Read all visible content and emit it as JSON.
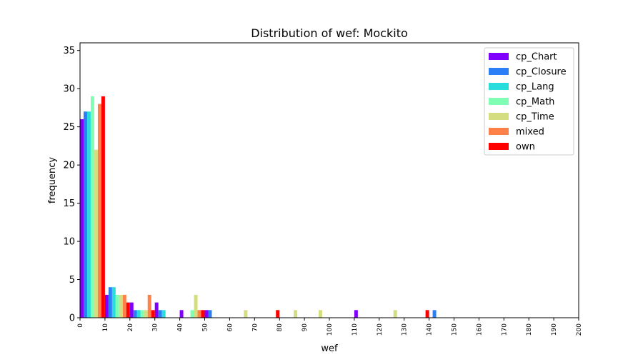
{
  "chart_data": {
    "type": "bar",
    "title": "Distribution of wef: Mockito",
    "xlabel": "wef",
    "ylabel": "frequency",
    "xlim": [
      0,
      200
    ],
    "ylim": [
      0,
      36
    ],
    "xticks": [
      0,
      10,
      20,
      30,
      40,
      50,
      60,
      70,
      80,
      90,
      100,
      110,
      120,
      130,
      140,
      150,
      160,
      170,
      180,
      190,
      200
    ],
    "yticks": [
      0,
      5,
      10,
      15,
      20,
      25,
      30,
      35
    ],
    "bin_width": 10,
    "bin_starts": [
      0,
      10,
      20,
      30,
      40,
      50,
      60,
      70,
      80,
      90,
      100,
      110,
      120,
      130,
      140
    ],
    "legend_position": "top-right",
    "grid": false,
    "series": [
      {
        "name": "cp_Chart",
        "color": "#8000ff",
        "values": [
          26,
          3,
          2,
          2,
          1,
          1,
          0,
          0,
          0,
          0,
          0,
          1,
          0,
          0,
          0
        ]
      },
      {
        "name": "cp_Closure",
        "color": "#2c7ef7",
        "values": [
          27,
          4,
          1,
          1,
          0,
          1,
          0,
          0,
          0,
          0,
          0,
          0,
          0,
          0,
          1
        ]
      },
      {
        "name": "cp_Lang",
        "color": "#2adddd",
        "values": [
          27,
          4,
          1,
          1,
          0,
          0,
          0,
          0,
          0,
          0,
          0,
          0,
          0,
          0,
          0
        ]
      },
      {
        "name": "cp_Math",
        "color": "#80ffb4",
        "values": [
          29,
          3,
          1,
          0,
          1,
          0,
          0,
          0,
          0,
          0,
          0,
          0,
          0,
          0,
          0
        ]
      },
      {
        "name": "cp_Time",
        "color": "#d4dd80",
        "values": [
          22,
          3,
          1,
          0,
          3,
          0,
          1,
          0,
          1,
          1,
          0,
          0,
          1,
          0,
          0
        ]
      },
      {
        "name": "mixed",
        "color": "#ff8048",
        "values": [
          28,
          3,
          3,
          0,
          1,
          0,
          0,
          0,
          0,
          0,
          0,
          0,
          0,
          0,
          0
        ]
      },
      {
        "name": "own",
        "color": "#ff0000",
        "values": [
          29,
          2,
          1,
          0,
          1,
          0,
          0,
          1,
          0,
          0,
          0,
          0,
          0,
          1,
          0
        ]
      }
    ]
  }
}
